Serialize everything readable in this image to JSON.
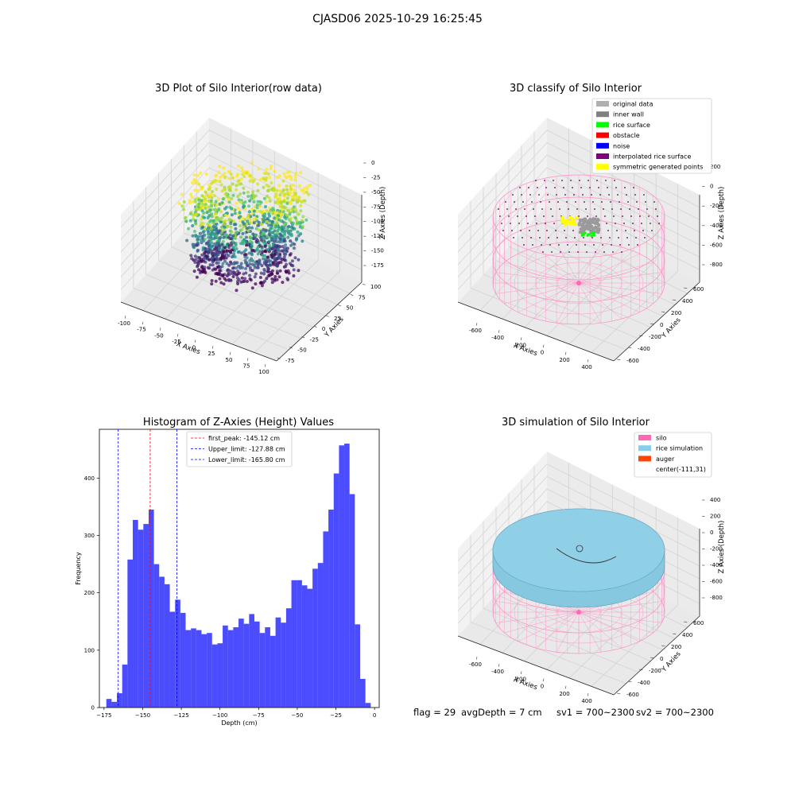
{
  "suptitle": "CJASD06 2025-10-29 16:25:45",
  "panels": {
    "tl": {
      "title": "3D Plot of Silo Interior(row data)",
      "xlabel": "X Axies",
      "ylabel": "Y Axies",
      "zlabel": "Z Axies (Depth)",
      "xticks": [
        "-100",
        "-75",
        "-50",
        "-25",
        "0",
        "25",
        "50",
        "75",
        "100"
      ],
      "yticks": [
        "-75",
        "-50",
        "-25",
        "0",
        "25",
        "50",
        "75",
        "100"
      ],
      "zticks": [
        "0",
        "-25",
        "-50",
        "-75",
        "-100",
        "-125",
        "-150",
        "-175"
      ]
    },
    "tr": {
      "title": "3D classify of Silo Interior",
      "xlabel": "X Axies",
      "ylabel": "Y Axies",
      "zlabel": "Z Axies (Depth)",
      "xticks": [
        "-600",
        "-400",
        "-200",
        "0",
        "200",
        "400"
      ],
      "yticks": [
        "-600",
        "-400",
        "-200",
        "0",
        "200",
        "400",
        "600"
      ],
      "zticks": [
        "200",
        "0",
        "-200",
        "-400",
        "-600",
        "-800"
      ],
      "legend": [
        {
          "label": "original data",
          "color": "#b0b0b0"
        },
        {
          "label": "inner wall",
          "color": "#808080"
        },
        {
          "label": "rice surface",
          "color": "#00ff00"
        },
        {
          "label": "obstacle",
          "color": "#ff0000"
        },
        {
          "label": "noise",
          "color": "#0000ff"
        },
        {
          "label": "interpolated rice surface",
          "color": "#800080"
        },
        {
          "label": "symmetric generated points",
          "color": "#ffff00"
        }
      ]
    },
    "br": {
      "title": "3D simulation of Silo Interior",
      "xlabel": "X Axies",
      "ylabel": "Y Axies",
      "zlabel": "Z Axies (Depth)",
      "xticks": [
        "-600",
        "-400",
        "-200",
        "0",
        "200",
        "400"
      ],
      "yticks": [
        "-600",
        "-400",
        "-200",
        "0",
        "200",
        "400",
        "600"
      ],
      "zticks": [
        "400",
        "200",
        "0",
        "-200",
        "-400",
        "-600",
        "-800"
      ],
      "legend": [
        {
          "label": "silo",
          "color": "#ff69b4"
        },
        {
          "label": "rice simulation",
          "color": "#87ceeb"
        },
        {
          "label": "auger",
          "color": "#ff4500"
        },
        {
          "label": "center(-111,31)",
          "color": "none"
        }
      ]
    }
  },
  "status": {
    "flag": "flag = 29",
    "avg_depth": "avgDepth = 7 cm",
    "sv1": "sv1 = 700~2300",
    "sv2": "sv2 = 700~2300"
  },
  "chart_data": [
    {
      "type": "scatter",
      "title": "3D Plot of Silo Interior(row data)",
      "xlabel": "X Axies",
      "ylabel": "Y Axies",
      "zlabel": "Z Axies (Depth)",
      "xlim": [
        -100,
        100
      ],
      "ylim": [
        -75,
        100
      ],
      "zlim": [
        -175,
        0
      ],
      "colormap": "viridis"
    },
    {
      "type": "scatter",
      "title": "3D classify of Silo Interior",
      "xlabel": "X Axies",
      "ylabel": "Y Axies",
      "zlabel": "Z Axies (Depth)",
      "xlim": [
        -600,
        400
      ],
      "ylim": [
        -600,
        600
      ],
      "zlim": [
        -800,
        200
      ],
      "legend_position": "top-right"
    },
    {
      "type": "bar",
      "title": "Histogram of Z-Axies (Height) Values",
      "xlabel": "Depth (cm)",
      "ylabel": "Frequency",
      "xlim": [
        -178,
        3
      ],
      "ylim": [
        0,
        485
      ],
      "xticks": [
        -175,
        -150,
        -125,
        -100,
        -75,
        -50,
        -25,
        0
      ],
      "yticks": [
        0,
        100,
        200,
        300,
        400
      ],
      "bin_start": -173.5,
      "bin_width": 3.42,
      "values": [
        15,
        10,
        25,
        75,
        258,
        327,
        310,
        320,
        345,
        250,
        228,
        215,
        167,
        188,
        165,
        135,
        138,
        135,
        128,
        130,
        110,
        112,
        143,
        135,
        140,
        155,
        146,
        163,
        150,
        130,
        140,
        125,
        157,
        148,
        173,
        222,
        222,
        213,
        207,
        242,
        252,
        307,
        345,
        408,
        457,
        460,
        372,
        145,
        50,
        8
      ],
      "color": "#0000ff",
      "vlines": [
        {
          "label": "first_peak: -145.12 cm",
          "x": -145.12,
          "color": "#ff0000"
        },
        {
          "label": "Upper_limit: -127.88 cm",
          "x": -127.88,
          "color": "#0000ff"
        },
        {
          "label": "Lower_limit: -165.80 cm",
          "x": -165.8,
          "color": "#0000ff"
        }
      ],
      "legend_position": "top-center"
    },
    {
      "type": "scatter",
      "title": "3D simulation of Silo Interior",
      "xlabel": "X Axies",
      "ylabel": "Y Axies",
      "zlabel": "Z Axies (Depth)",
      "xlim": [
        -600,
        400
      ],
      "ylim": [
        -600,
        600
      ],
      "zlim": [
        -800,
        400
      ],
      "legend_position": "top-right"
    }
  ]
}
